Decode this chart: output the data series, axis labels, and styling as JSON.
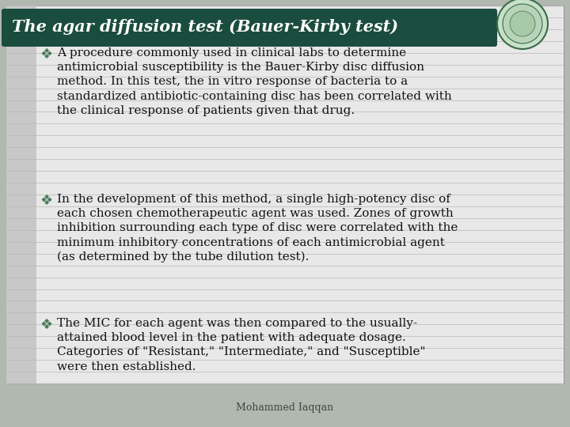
{
  "title": "The agar diffusion test (Bauer-Kirby test)",
  "title_bg_color": "#1b4d3e",
  "title_text_color": "#ffffff",
  "bg_color": "#b0b8b0",
  "body_bg_color": "#e8e8e8",
  "stripe_bg_color": "#c8c8c8",
  "stripe_line_color": "#b8b8b8",
  "bullet_color": "#4a7a58",
  "bullet_char": "❖",
  "footer": "Mohammed Iaqqan",
  "bullets": [
    "A procedure commonly used in clinical labs to determine\nantimicrobial susceptibility is the Bauer-Kirby disc diffusion\nmethod. In this test, the in vitro response of bacteria to a\nstandardized antibiotic-containing disc has been correlated with\nthe clinical response of patients given that drug.",
    "In the development of this method, a single high-potency disc of\neach chosen chemotherapeutic agent was used. Zones of growth\ninhibition surrounding each type of disc were correlated with the\nminimum inhibitory concentrations of each antimicrobial agent\n(as determined by the tube dilution test).",
    "The MIC for each agent was then compared to the usually-\nattained blood level in the patient with adequate dosage.\nCategories of \"Resistant,\" \"Intermediate,\" and \"Susceptible\"\nwere then established."
  ],
  "title_fontsize": 15,
  "body_fontsize": 11,
  "footer_fontsize": 9,
  "bullet_fontsize": 13
}
